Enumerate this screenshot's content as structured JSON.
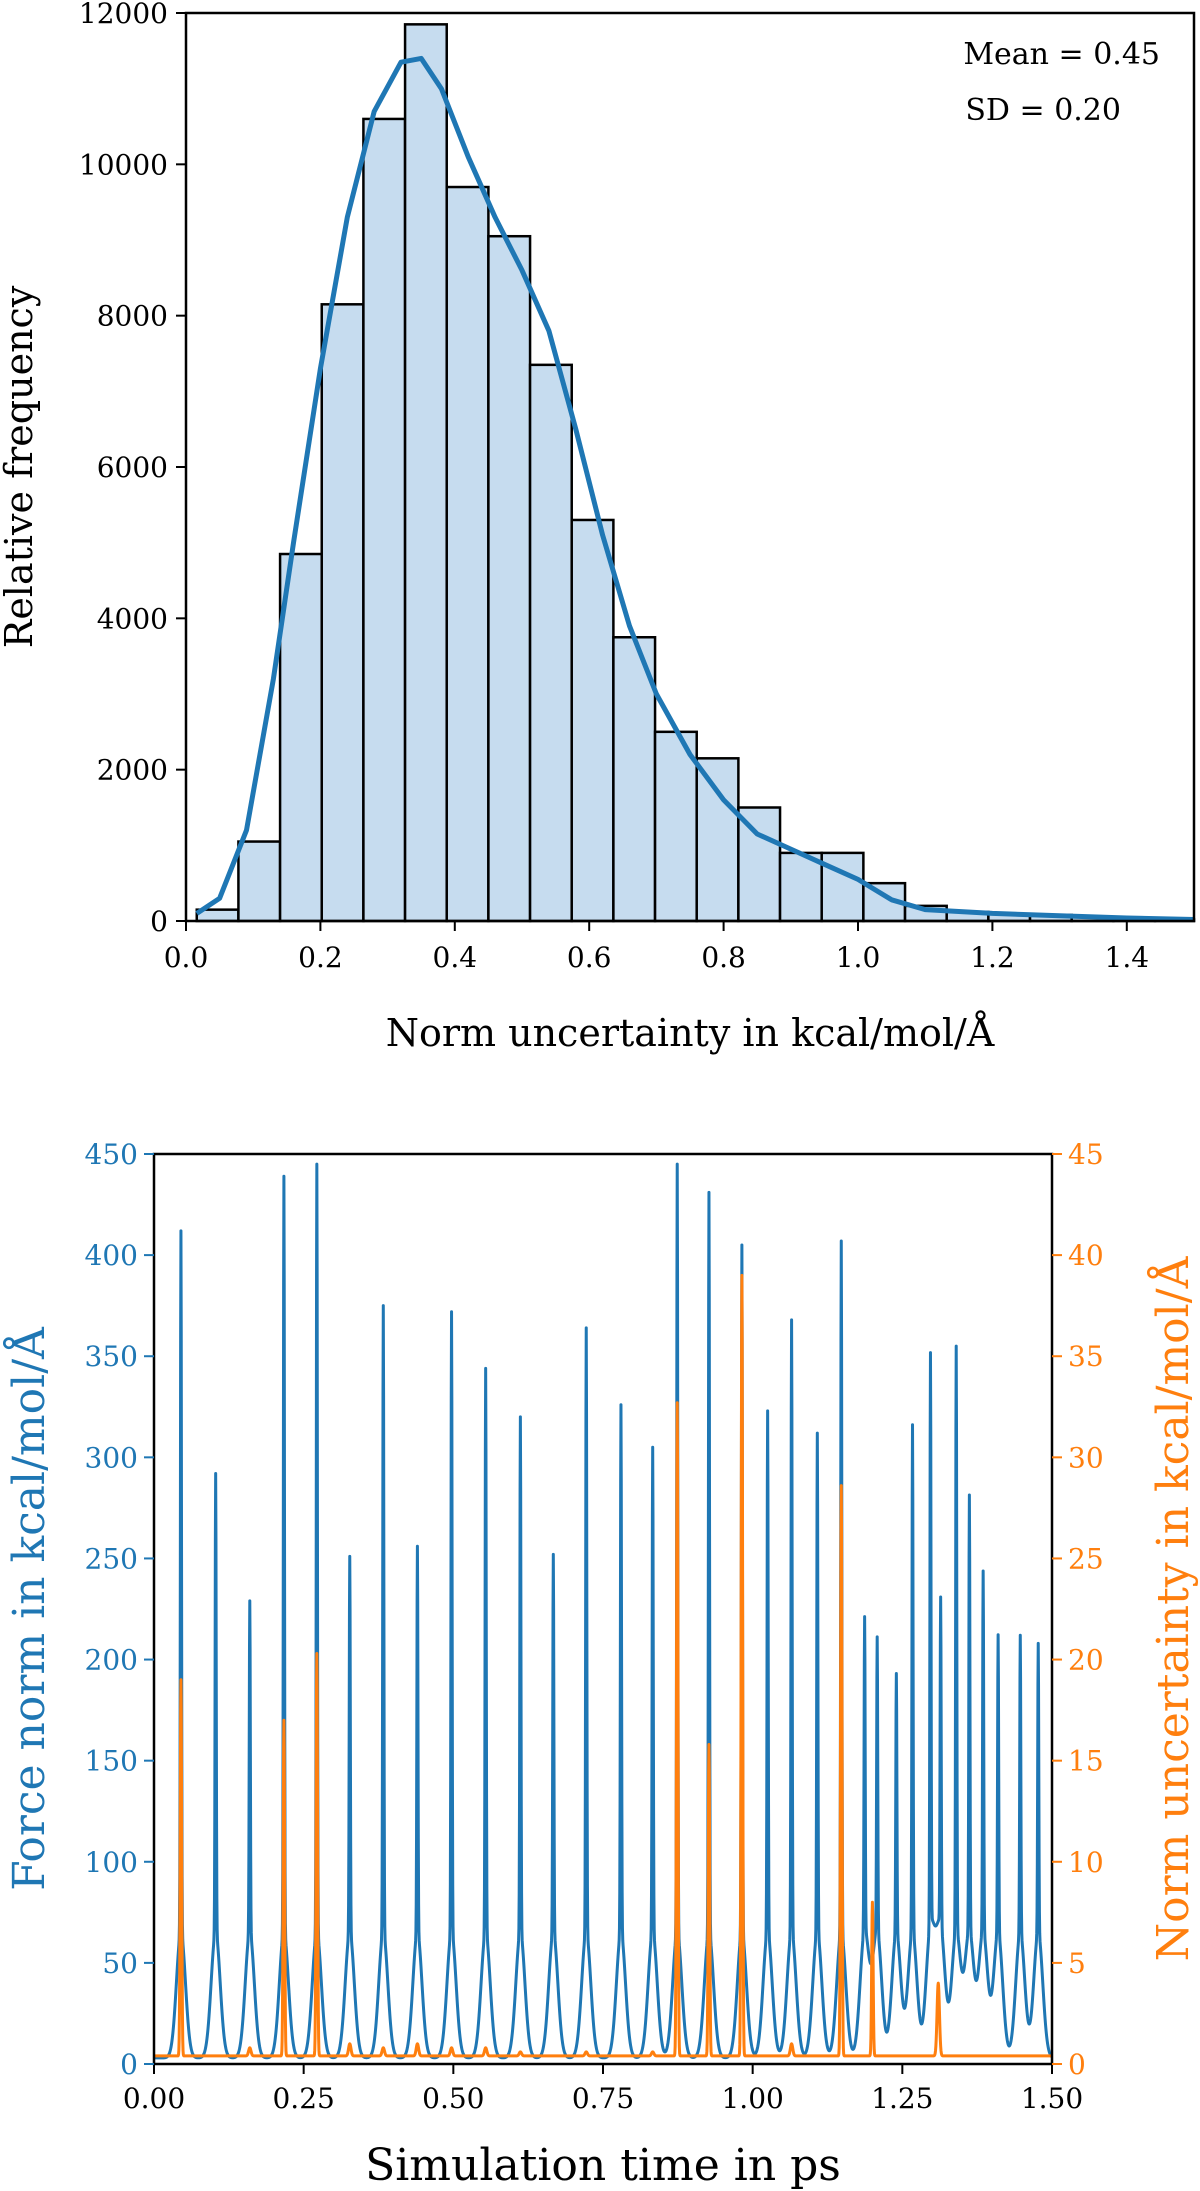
{
  "colors": {
    "blue": "#1f77b4",
    "orange": "#ff7f0e",
    "bar_fill": "#c6dcef",
    "bar_edge": "#000000"
  },
  "chart_data": [
    {
      "type": "bar",
      "subtype": "histogram-with-kde",
      "xlabel": "Norm uncertainty in kcal/mol/Å",
      "ylabel": "Relative frequency",
      "xlim": [
        0.0,
        1.5
      ],
      "ylim": [
        0,
        12000
      ],
      "xticks": [
        "0.0",
        "0.2",
        "0.4",
        "0.6",
        "0.8",
        "1.0",
        "1.2",
        "1.4"
      ],
      "yticks": [
        "0",
        "2000",
        "4000",
        "6000",
        "8000",
        "10000",
        "12000"
      ],
      "annotations": [
        "Mean = 0.45",
        "SD = 0.20"
      ],
      "bins": [
        {
          "x0": 0.016,
          "x1": 0.078,
          "value": 150
        },
        {
          "x0": 0.078,
          "x1": 0.14,
          "value": 1050
        },
        {
          "x0": 0.14,
          "x1": 0.202,
          "value": 4850
        },
        {
          "x0": 0.202,
          "x1": 0.264,
          "value": 8150
        },
        {
          "x0": 0.264,
          "x1": 0.326,
          "value": 10600
        },
        {
          "x0": 0.326,
          "x1": 0.388,
          "value": 11850
        },
        {
          "x0": 0.388,
          "x1": 0.45,
          "value": 9700
        },
        {
          "x0": 0.45,
          "x1": 0.512,
          "value": 9050
        },
        {
          "x0": 0.512,
          "x1": 0.574,
          "value": 7350
        },
        {
          "x0": 0.574,
          "x1": 0.636,
          "value": 5300
        },
        {
          "x0": 0.636,
          "x1": 0.698,
          "value": 3750
        },
        {
          "x0": 0.698,
          "x1": 0.76,
          "value": 2500
        },
        {
          "x0": 0.76,
          "x1": 0.822,
          "value": 2150
        },
        {
          "x0": 0.822,
          "x1": 0.884,
          "value": 1500
        },
        {
          "x0": 0.884,
          "x1": 0.946,
          "value": 900
        },
        {
          "x0": 0.946,
          "x1": 1.008,
          "value": 900
        },
        {
          "x0": 1.008,
          "x1": 1.07,
          "value": 500
        },
        {
          "x0": 1.07,
          "x1": 1.132,
          "value": 200
        },
        {
          "x0": 1.132,
          "x1": 1.194,
          "value": 120
        },
        {
          "x0": 1.194,
          "x1": 1.256,
          "value": 90
        },
        {
          "x0": 1.256,
          "x1": 1.318,
          "value": 80
        },
        {
          "x0": 1.318,
          "x1": 1.38,
          "value": 50
        },
        {
          "x0": 1.38,
          "x1": 1.442,
          "value": 30
        },
        {
          "x0": 1.442,
          "x1": 1.5,
          "value": 20
        }
      ],
      "kde": {
        "x": [
          0.016,
          0.05,
          0.09,
          0.13,
          0.16,
          0.2,
          0.24,
          0.28,
          0.32,
          0.35,
          0.38,
          0.42,
          0.46,
          0.5,
          0.54,
          0.58,
          0.62,
          0.66,
          0.7,
          0.75,
          0.8,
          0.85,
          0.9,
          0.95,
          1.0,
          1.05,
          1.1,
          1.2,
          1.3,
          1.4,
          1.5
        ],
        "y": [
          100,
          300,
          1200,
          3200,
          5000,
          7300,
          9300,
          10700,
          11350,
          11400,
          11000,
          10100,
          9300,
          8600,
          7800,
          6500,
          5100,
          3900,
          3000,
          2200,
          1600,
          1150,
          950,
          750,
          550,
          280,
          150,
          100,
          70,
          40,
          20
        ]
      }
    },
    {
      "type": "line",
      "xlabel": "Simulation time in ps",
      "ylabel_left": "Force norm in kcal/mol/Å",
      "ylabel_right": "Norm uncertainty in kcal/mol/Å",
      "xlim": [
        0.0,
        1.5
      ],
      "ylim_left": [
        0,
        450
      ],
      "ylim_right": [
        0,
        45
      ],
      "xticks": [
        "0.00",
        "0.25",
        "0.50",
        "0.75",
        "1.00",
        "1.25",
        "1.50"
      ],
      "yticks_left": [
        "0",
        "50",
        "100",
        "150",
        "200",
        "250",
        "300",
        "350",
        "400",
        "450"
      ],
      "yticks_right": [
        "0",
        "5",
        "10",
        "15",
        "20",
        "25",
        "30",
        "35",
        "40",
        "45"
      ],
      "series": [
        {
          "axis": "left",
          "baseline": 3,
          "shoulder": 65,
          "peaks_x": [
            0.045,
            0.103,
            0.16,
            0.217,
            0.272,
            0.327,
            0.383,
            0.44,
            0.497,
            0.554,
            0.612,
            0.667,
            0.722,
            0.78,
            0.833,
            0.874,
            0.927,
            0.982,
            1.025,
            1.065,
            1.108,
            1.148,
            1.187,
            1.208,
            1.24,
            1.267,
            1.297,
            1.314,
            1.34,
            1.362,
            1.385,
            1.41,
            1.447,
            1.477
          ],
          "peaks_y": [
            412,
            292,
            229,
            439,
            445,
            251,
            375,
            256,
            372,
            344,
            320,
            252,
            364,
            326,
            305,
            445,
            431,
            405,
            323,
            368,
            312,
            407,
            220,
            210,
            193,
            316,
            347,
            226,
            354,
            280,
            243,
            212,
            212,
            208
          ]
        },
        {
          "axis": "right",
          "baseline": 0.4,
          "peaks_x": [
            0.045,
            0.16,
            0.217,
            0.272,
            0.327,
            0.383,
            0.44,
            0.497,
            0.554,
            0.612,
            0.722,
            0.833,
            0.874,
            0.927,
            0.982,
            1.065,
            1.148,
            1.2,
            1.31
          ],
          "peaks_y": [
            19.0,
            0.8,
            17.0,
            20.3,
            1.0,
            0.8,
            1.0,
            0.8,
            0.8,
            0.6,
            0.6,
            0.6,
            32.7,
            15.8,
            39.0,
            1.0,
            28.6,
            8.0,
            4.0
          ]
        }
      ]
    }
  ]
}
